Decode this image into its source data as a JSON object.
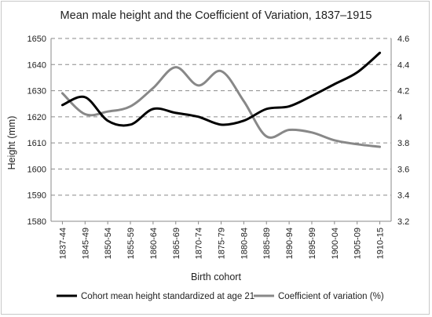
{
  "chart_data": {
    "type": "line",
    "title": "Mean male height and the Coefficient of Variation, 1837–1915",
    "xlabel": "Birth cohort",
    "ylabel": "Height (mm)",
    "y2label": "",
    "categories": [
      "1837-44",
      "1845-49",
      "1850-54",
      "1855-59",
      "1860-64",
      "1865-69",
      "1870-74",
      "1875-79",
      "1880-84",
      "1885-89",
      "1890-94",
      "1895-99",
      "1900-04",
      "1905-09",
      "1910-15"
    ],
    "ylim": [
      1580,
      1650
    ],
    "y_ticks": [
      1580,
      1590,
      1600,
      1610,
      1620,
      1630,
      1640,
      1650
    ],
    "y2lim": [
      3.2,
      4.6
    ],
    "y2_ticks": [
      "3.2",
      "3.4",
      "3.6",
      "3.8",
      "4",
      "4.2",
      "4.4",
      "4.6"
    ],
    "grid": "horizontal dashed",
    "legend_position": "bottom",
    "series": [
      {
        "name": "Cohort mean height standardized at age 21",
        "axis": "left",
        "color": "#000000",
        "values": [
          1624.5,
          1627.5,
          1618.5,
          1617.0,
          1623.0,
          1621.5,
          1620.0,
          1617.0,
          1618.5,
          1623.0,
          1624.0,
          1628.0,
          1632.5,
          1637.0,
          1644.5
        ]
      },
      {
        "name": "Coefficient of variation (%)",
        "axis": "right",
        "color": "#888888",
        "values": [
          4.18,
          4.02,
          4.04,
          4.08,
          4.22,
          4.38,
          4.24,
          4.35,
          4.12,
          3.85,
          3.9,
          3.88,
          3.82,
          3.79,
          3.77
        ]
      }
    ]
  }
}
